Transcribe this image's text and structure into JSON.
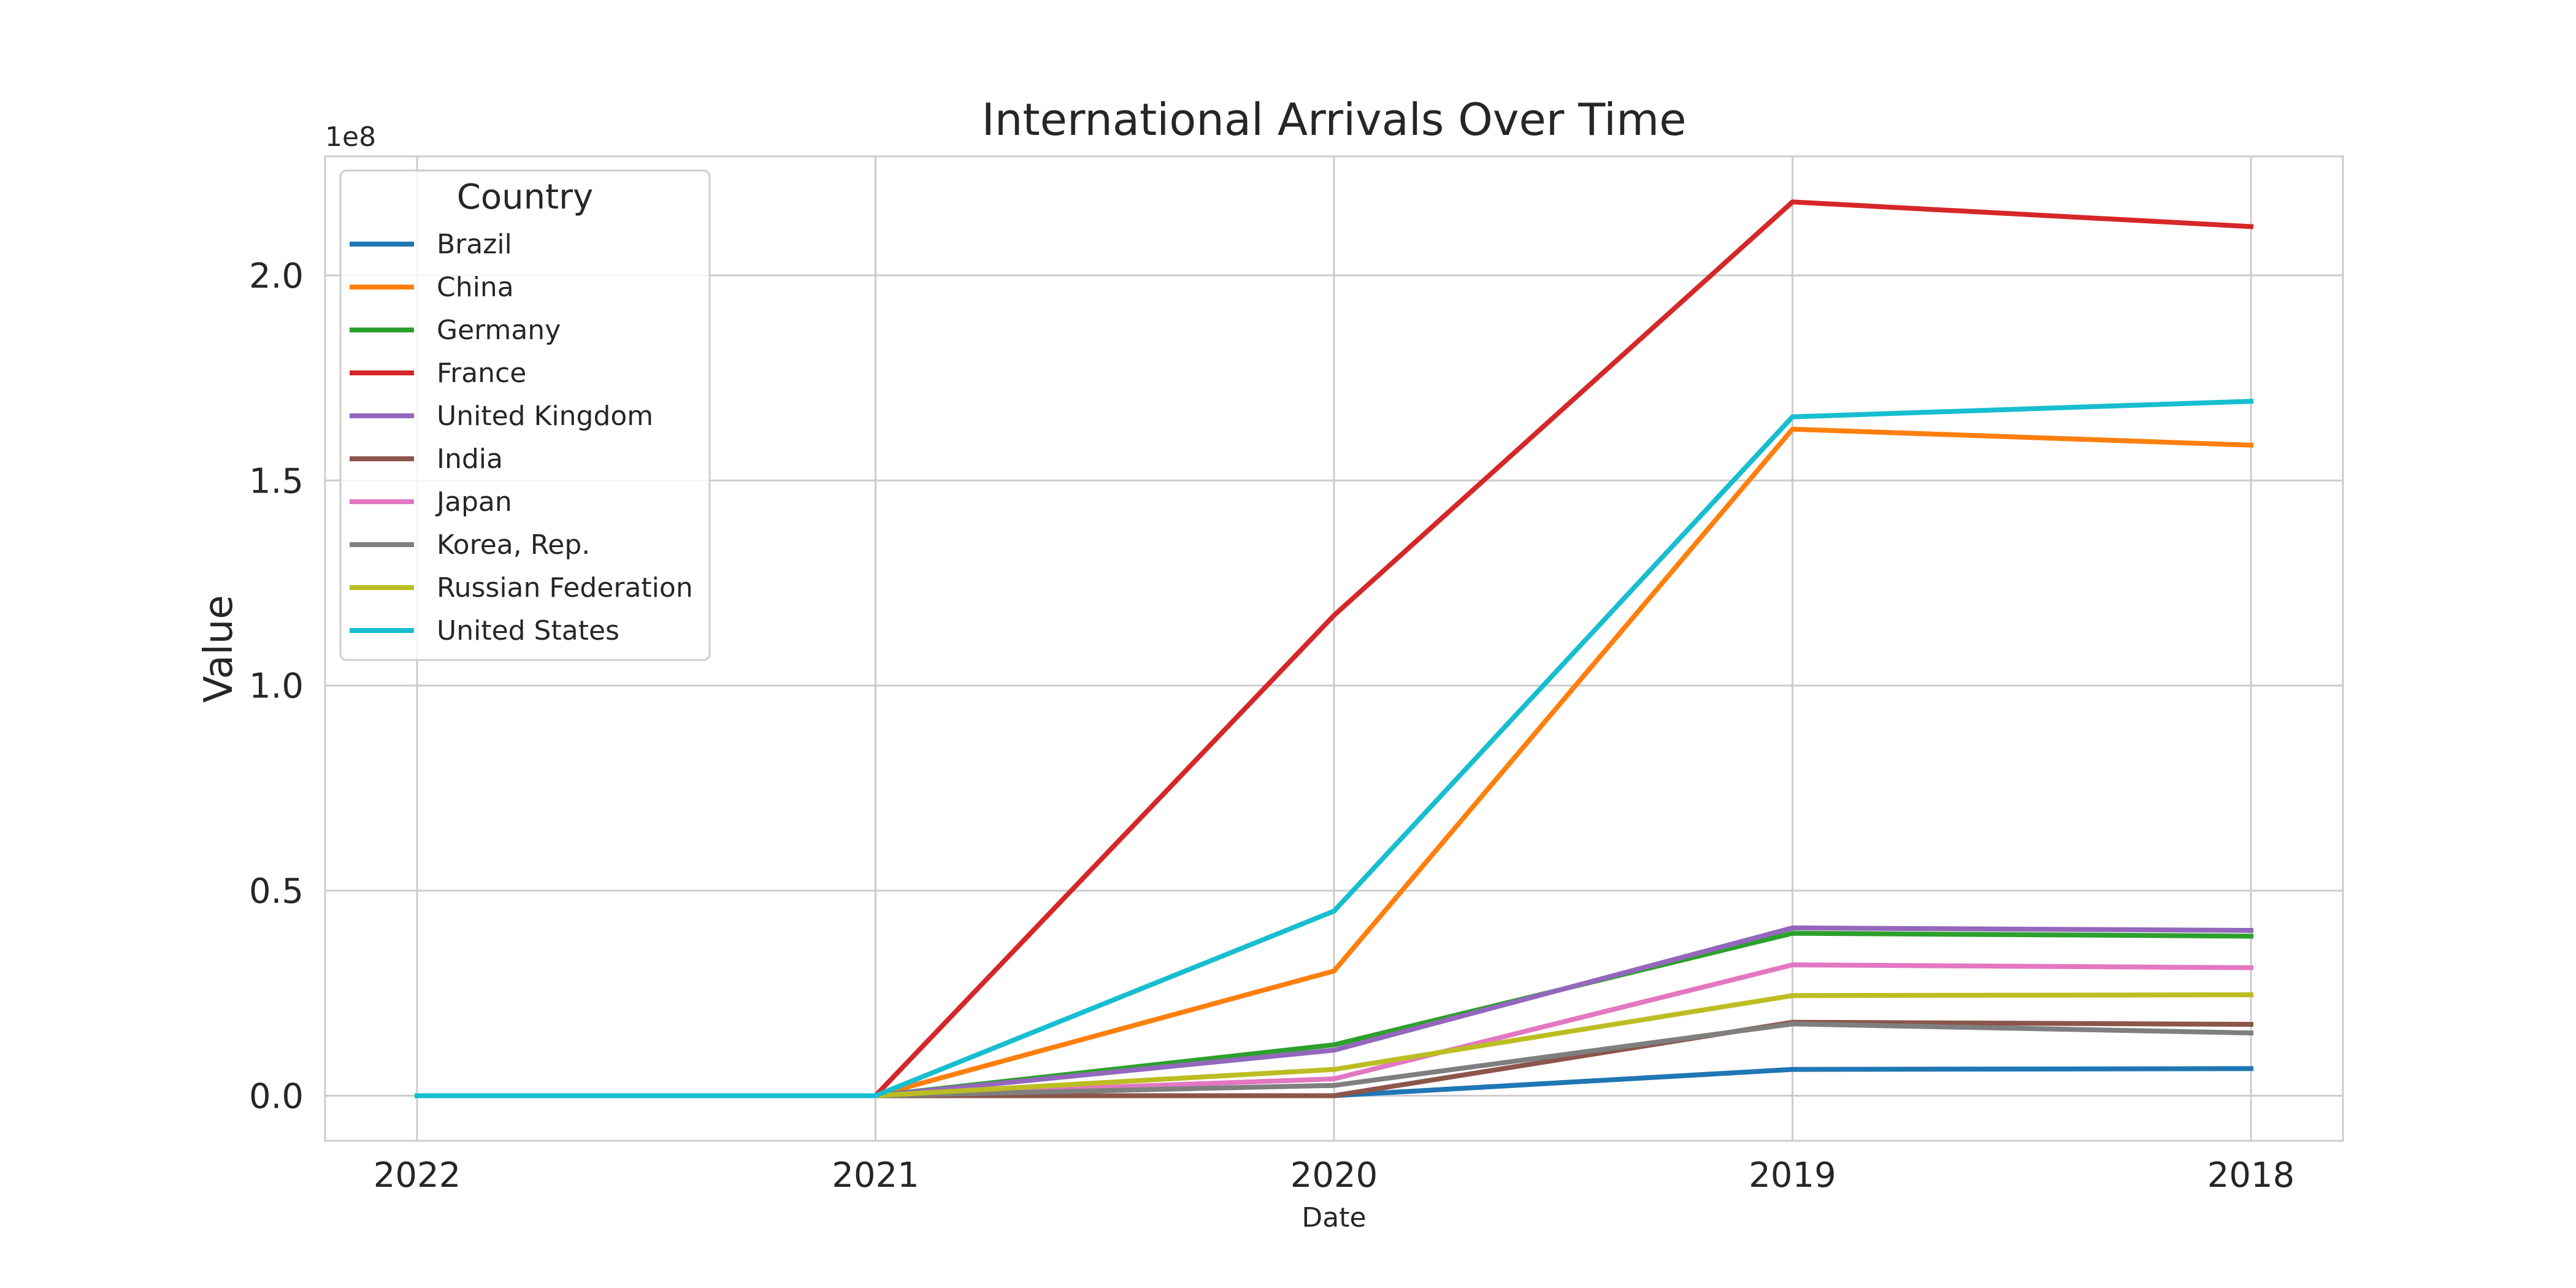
{
  "chart_data": {
    "type": "line",
    "title": "International Arrivals Over Time",
    "xlabel": "Date",
    "ylabel": "Value",
    "y_exponent_label": "1e8",
    "x": [
      "2022",
      "2021",
      "2020",
      "2019",
      "2018"
    ],
    "y_ticks": [
      "0.0",
      "0.5",
      "1.0",
      "1.5",
      "2.0"
    ],
    "y_tick_values": [
      0,
      50000000,
      100000000,
      150000000,
      200000000
    ],
    "ylim": [
      -11000000,
      229000000
    ],
    "grid": true,
    "legend": {
      "title": "Country",
      "placement": "upper-left"
    },
    "series": [
      {
        "name": "Brazil",
        "color": "#1f77b4",
        "values": [
          0,
          0,
          0,
          6400000,
          6600000
        ]
      },
      {
        "name": "China",
        "color": "#ff7f0e",
        "values": [
          0,
          0,
          30400000,
          162500000,
          158600000
        ]
      },
      {
        "name": "Germany",
        "color": "#2ca02c",
        "values": [
          0,
          0,
          12400000,
          39600000,
          38900000
        ]
      },
      {
        "name": "France",
        "color": "#d62728",
        "values": [
          0,
          0,
          117100000,
          217900000,
          211900000
        ]
      },
      {
        "name": "United Kingdom",
        "color": "#9467bd",
        "values": [
          0,
          0,
          11100000,
          40900000,
          40300000
        ]
      },
      {
        "name": "India",
        "color": "#8c564b",
        "values": [
          0,
          0,
          0,
          17900000,
          17400000
        ]
      },
      {
        "name": "Japan",
        "color": "#e377c2",
        "values": [
          0,
          0,
          4100000,
          31900000,
          31200000
        ]
      },
      {
        "name": "Korea, Rep.",
        "color": "#7f7f7f",
        "values": [
          0,
          0,
          2500000,
          17500000,
          15300000
        ]
      },
      {
        "name": "Russian Federation",
        "color": "#bcbd22",
        "values": [
          0,
          0,
          6400000,
          24400000,
          24600000
        ]
      },
      {
        "name": "United States",
        "color": "#17becf",
        "values": [
          0,
          0,
          45000000,
          165500000,
          169300000
        ]
      }
    ]
  }
}
